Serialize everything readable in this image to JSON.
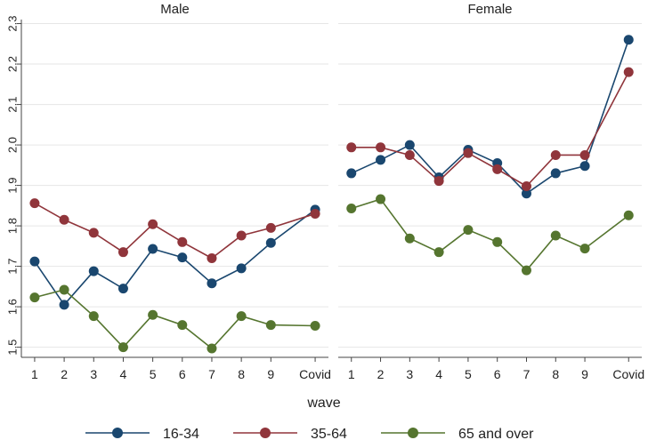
{
  "chart_data": {
    "type": "line",
    "xlabel": "wave",
    "x_categories": [
      "1",
      "2",
      "3",
      "4",
      "5",
      "6",
      "7",
      "8",
      "9",
      "Covid"
    ],
    "x_positions": [
      1,
      2,
      3,
      4,
      5,
      6,
      7,
      8,
      9,
      10.5
    ],
    "ylim": [
      1.475,
      2.31
    ],
    "yticks": [
      "1.5",
      "1.6",
      "1.7",
      "1.8",
      "1.9",
      "2.0",
      "2.1",
      "2.2",
      "2.3"
    ],
    "grid": true,
    "legend_position": "bottom",
    "series_styles": [
      {
        "name": "16-34",
        "color": "#1a476f"
      },
      {
        "name": "35-64",
        "color": "#90353b"
      },
      {
        "name": "65 and over",
        "color": "#55752f"
      }
    ],
    "panels": [
      {
        "title": "Male",
        "series": [
          {
            "name": "16-34",
            "values": [
              1.712,
              1.605,
              1.688,
              1.645,
              1.743,
              1.722,
              1.658,
              1.695,
              1.758,
              1.84
            ]
          },
          {
            "name": "35-64",
            "values": [
              1.856,
              1.815,
              1.783,
              1.735,
              1.804,
              1.76,
              1.72,
              1.776,
              1.795,
              1.83
            ]
          },
          {
            "name": "65 and over",
            "values": [
              1.623,
              1.642,
              1.577,
              1.5,
              1.58,
              1.555,
              1.497,
              1.577,
              1.555,
              1.553
            ]
          }
        ]
      },
      {
        "title": "Female",
        "series": [
          {
            "name": "16-34",
            "values": [
              1.93,
              1.963,
              2.0,
              1.92,
              1.988,
              1.955,
              1.88,
              1.93,
              1.948,
              2.26
            ]
          },
          {
            "name": "35-64",
            "values": [
              1.994,
              1.994,
              1.975,
              1.911,
              1.98,
              1.94,
              1.898,
              1.975,
              1.975,
              2.18
            ]
          },
          {
            "name": "65 and over",
            "values": [
              1.843,
              1.866,
              1.769,
              1.735,
              1.79,
              1.76,
              1.69,
              1.776,
              1.744,
              1.826
            ]
          }
        ]
      }
    ]
  }
}
